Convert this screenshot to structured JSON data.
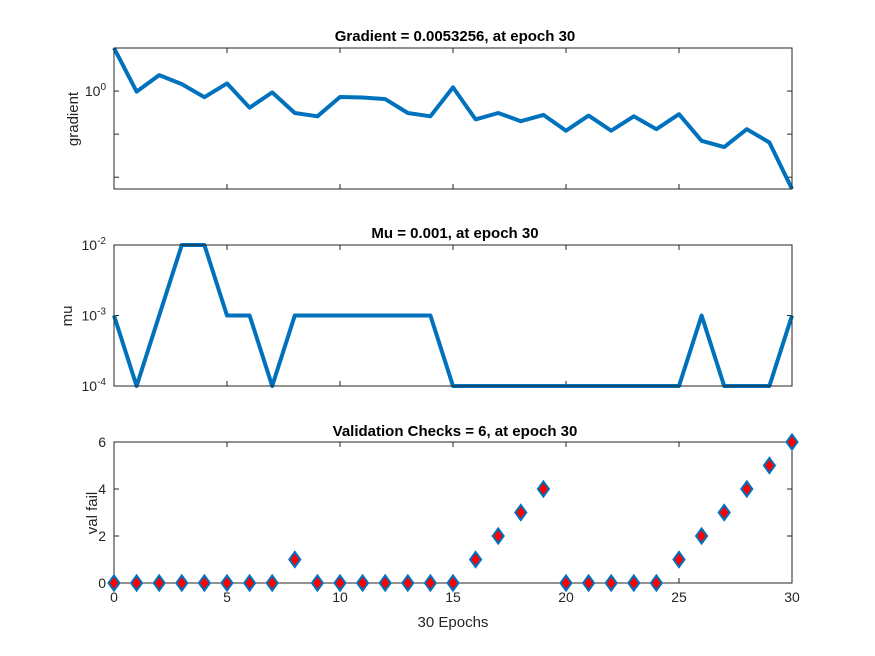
{
  "chart_data": [
    {
      "type": "line",
      "title": "Gradient = 0.0053256, at epoch 30",
      "ylabel": "gradient",
      "xlabel": "",
      "yscale": "log",
      "ylim": [
        0.0053256,
        10.0
      ],
      "xlim": [
        0,
        30
      ],
      "yticks": [
        {
          "value": 1,
          "base": "10",
          "exp": "0"
        }
      ],
      "color": "#0072bd",
      "series": [
        {
          "name": "gradient",
          "x": [
            0,
            1,
            2,
            3,
            4,
            5,
            6,
            7,
            8,
            9,
            10,
            11,
            12,
            13,
            14,
            15,
            16,
            17,
            18,
            19,
            20,
            21,
            22,
            23,
            24,
            25,
            26,
            27,
            28,
            29,
            30
          ],
          "values": [
            10.0,
            0.97,
            2.35,
            1.45,
            0.72,
            1.51,
            0.41,
            0.93,
            0.31,
            0.26,
            0.73,
            0.71,
            0.65,
            0.31,
            0.26,
            1.22,
            0.22,
            0.31,
            0.2,
            0.28,
            0.12,
            0.27,
            0.12,
            0.26,
            0.13,
            0.29,
            0.07,
            0.05,
            0.13,
            0.064,
            0.0053256
          ]
        }
      ]
    },
    {
      "type": "line",
      "title": "Mu = 0.001, at epoch 30",
      "ylabel": "mu",
      "xlabel": "",
      "yscale": "log",
      "ylim": [
        0.0001,
        0.01
      ],
      "xlim": [
        0,
        30
      ],
      "yticks": [
        {
          "value": 0.0001,
          "base": "10",
          "exp": "-4"
        },
        {
          "value": 0.001,
          "base": "10",
          "exp": "-3"
        },
        {
          "value": 0.01,
          "base": "10",
          "exp": "-2"
        }
      ],
      "color": "#0072bd",
      "series": [
        {
          "name": "mu",
          "x": [
            0,
            1,
            2,
            3,
            4,
            5,
            6,
            7,
            8,
            9,
            10,
            11,
            12,
            13,
            14,
            15,
            16,
            17,
            18,
            19,
            20,
            21,
            22,
            23,
            24,
            25,
            26,
            27,
            28,
            29,
            30
          ],
          "values": [
            0.001,
            0.0001,
            0.001,
            0.01,
            0.01,
            0.001,
            0.001,
            0.0001,
            0.001,
            0.001,
            0.001,
            0.001,
            0.001,
            0.001,
            0.001,
            0.0001,
            0.0001,
            0.0001,
            0.0001,
            0.0001,
            0.0001,
            0.0001,
            0.0001,
            0.0001,
            0.0001,
            0.0001,
            0.001,
            0.0001,
            0.0001,
            0.0001,
            0.001
          ]
        }
      ]
    },
    {
      "type": "scatter",
      "title": "Validation Checks = 6, at epoch 30",
      "ylabel": "val fail",
      "xlabel": "30 Epochs",
      "yscale": "linear",
      "ylim": [
        0,
        6
      ],
      "xlim": [
        0,
        30
      ],
      "yticks": [
        0,
        2,
        4,
        6
      ],
      "xticks": [
        0,
        5,
        10,
        15,
        20,
        25,
        30
      ],
      "marker": "diamond",
      "marker_fill": "#ff0000",
      "marker_edge": "#0072bd",
      "series": [
        {
          "name": "val fail",
          "x": [
            0,
            1,
            2,
            3,
            4,
            5,
            6,
            7,
            8,
            9,
            10,
            11,
            12,
            13,
            14,
            15,
            16,
            17,
            18,
            19,
            20,
            21,
            22,
            23,
            24,
            25,
            26,
            27,
            28,
            29,
            30
          ],
          "values": [
            0,
            0,
            0,
            0,
            0,
            0,
            0,
            0,
            1,
            0,
            0,
            0,
            0,
            0,
            0,
            0,
            1,
            2,
            3,
            4,
            0,
            0,
            0,
            0,
            0,
            1,
            2,
            3,
            4,
            5,
            6
          ]
        }
      ]
    }
  ]
}
